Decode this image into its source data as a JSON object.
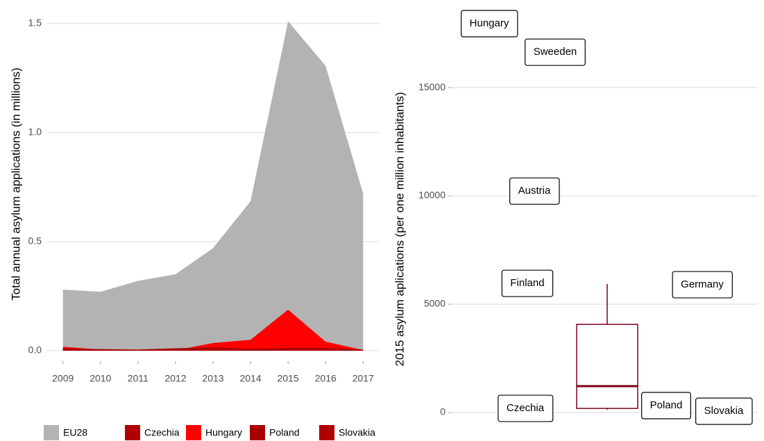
{
  "chart_data": [
    {
      "type": "area",
      "y_label": "Total annual asylum applications (in millions)",
      "x": [
        2009,
        2010,
        2011,
        2012,
        2013,
        2014,
        2015,
        2016,
        2017
      ],
      "series": [
        {
          "name": "EU28",
          "color": "#b3b3b3",
          "values": [
            0.28,
            0.27,
            0.32,
            0.35,
            0.47,
            0.685,
            1.51,
            1.306,
            0.72
          ]
        },
        {
          "name": "Czechia",
          "color": "#b00000",
          "values": [
            0.002,
            0.001,
            0.001,
            0.001,
            0.001,
            0.001,
            0.001,
            0.001,
            0.001
          ]
        },
        {
          "name": "Hungary",
          "color": "#ff0000",
          "values": [
            0.018,
            0.005,
            0.002,
            0.002,
            0.035,
            0.05,
            0.188,
            0.041,
            0.003
          ]
        },
        {
          "name": "Poland",
          "color": "#a80000",
          "values": [
            0.01,
            0.007,
            0.005,
            0.011,
            0.015,
            0.008,
            0.012,
            0.012,
            0.005
          ]
        },
        {
          "name": "Slovakia",
          "color": "#b00000",
          "values": [
            0.001,
            0.0005,
            0.0003,
            0.0007,
            0.0004,
            0.0003,
            0.0003,
            0.0001,
            0.0002
          ]
        }
      ],
      "xlim": [
        2008.58,
        2017.42
      ],
      "xticks": [
        2009,
        2010,
        2011,
        2012,
        2013,
        2014,
        2015,
        2016,
        2017
      ],
      "ylim": [
        -0.048,
        1.576
      ],
      "yticks": [
        {
          "value": 0,
          "label": "0.0"
        },
        {
          "value": 0.5,
          "label": "0.5"
        },
        {
          "value": 1,
          "label": "1.0"
        },
        {
          "value": 1.5,
          "label": "1.5"
        }
      ],
      "grid": true,
      "legend": "bottom"
    },
    {
      "type": "box",
      "y_label": "2015 asylum aplications (per one million inhabitants)",
      "color": "#7a0019",
      "box": {
        "min": 130,
        "q1": 190,
        "median": 1220,
        "q3": 4070,
        "max": 5930
      },
      "labels": [
        {
          "label": "Hungary",
          "value": 17950
        },
        {
          "label": "Sweeden",
          "value": 16630
        },
        {
          "label": "Austria",
          "value": 10220
        },
        {
          "label": "Finland",
          "value": 5960
        },
        {
          "label": "Germany",
          "value": 5900
        },
        {
          "label": "Czechia",
          "value": 190
        },
        {
          "label": "Poland",
          "value": 320
        },
        {
          "label": "Slovakia",
          "value": 60
        }
      ],
      "ylim": [
        -833,
        18720
      ],
      "yticks": [
        0,
        5000,
        10000,
        15000
      ],
      "grid": true
    }
  ]
}
